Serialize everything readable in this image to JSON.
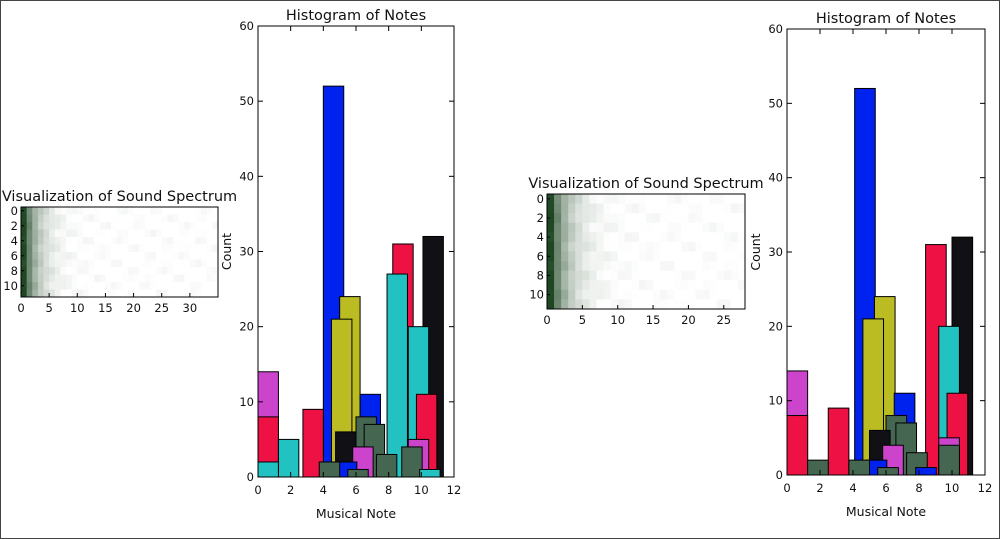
{
  "chart_data": [
    {
      "type": "heatmap",
      "title": "Visualization of Sound Spectrum",
      "xlim": [
        0,
        35
      ],
      "ylim": [
        0,
        12
      ],
      "xticks": [
        "0",
        "5",
        "10",
        "15",
        "20",
        "25",
        "30"
      ],
      "yticks": [
        "0",
        "2",
        "4",
        "6",
        "8",
        "10"
      ],
      "rows": 12,
      "cols": 35,
      "colormap": "greys-green"
    },
    {
      "type": "bar",
      "title": "Histogram of Notes",
      "xlabel": "Musical Note",
      "ylabel": "Count",
      "xlim": [
        0,
        12
      ],
      "ylim": [
        0,
        60
      ],
      "xticks": [
        "0",
        "2",
        "4",
        "6",
        "8",
        "10",
        "12"
      ],
      "yticks": [
        "0",
        "10",
        "20",
        "30",
        "40",
        "50",
        "60"
      ],
      "bar_width": 1.25,
      "series": [
        {
          "color": "#ee1144",
          "values": [
            [
              0,
              8
            ],
            [
              2.75,
              9
            ],
            [
              8.25,
              31
            ],
            [
              9.7,
              11
            ]
          ]
        },
        {
          "color": "#cc44cc",
          "values": [
            [
              0,
              14
            ],
            [
              5.8,
              4
            ],
            [
              9.2,
              5
            ]
          ]
        },
        {
          "color": "#22c2c2",
          "values": [
            [
              0,
              2
            ],
            [
              1.25,
              5
            ],
            [
              7.9,
              27
            ],
            [
              9.2,
              20
            ],
            [
              9.9,
              1
            ]
          ]
        },
        {
          "color": "#111115",
          "values": [
            [
              4.75,
              6
            ],
            [
              10.1,
              32
            ]
          ]
        },
        {
          "color": "#0022ee",
          "values": [
            [
              4.0,
              52
            ],
            [
              4.8,
              2
            ],
            [
              6.25,
              11
            ]
          ]
        },
        {
          "color": "#bbbb22",
          "values": [
            [
              4.5,
              21
            ],
            [
              5.0,
              24
            ]
          ]
        },
        {
          "color": "#456650",
          "values": [
            [
              3.75,
              2
            ],
            [
              5.5,
              1
            ],
            [
              6.0,
              8
            ],
            [
              6.5,
              7
            ],
            [
              7.25,
              3
            ],
            [
              8.8,
              4
            ]
          ]
        }
      ]
    },
    {
      "type": "heatmap",
      "title": "Visualization of Sound Spectrum",
      "xlim": [
        0,
        28
      ],
      "ylim": [
        0,
        12
      ],
      "xticks": [
        "0",
        "5",
        "10",
        "15",
        "20",
        "25"
      ],
      "yticks": [
        "0",
        "2",
        "4",
        "6",
        "8",
        "10"
      ],
      "rows": 12,
      "cols": 28,
      "colormap": "greys-green"
    },
    {
      "type": "bar",
      "title": "Histogram of Notes",
      "xlabel": "Musical Note",
      "ylabel": "Count",
      "xlim": [
        0,
        12
      ],
      "ylim": [
        0,
        60
      ],
      "xticks": [
        "0",
        "2",
        "4",
        "6",
        "8",
        "10",
        "12"
      ],
      "yticks": [
        "0",
        "10",
        "20",
        "30",
        "40",
        "50",
        "60"
      ],
      "bar_width": 1.25,
      "series": [
        {
          "color": "#ee1144",
          "values": [
            [
              0,
              8
            ],
            [
              2.5,
              9
            ],
            [
              8.4,
              31
            ],
            [
              9.7,
              11
            ]
          ]
        },
        {
          "color": "#cc44cc",
          "values": [
            [
              0,
              14
            ],
            [
              5.8,
              4
            ],
            [
              9.2,
              5
            ]
          ]
        },
        {
          "color": "#22c2c2",
          "values": [
            [
              9.2,
              20
            ]
          ]
        },
        {
          "color": "#111115",
          "values": [
            [
              5.0,
              6
            ],
            [
              10.0,
              32
            ]
          ]
        },
        {
          "color": "#0022ee",
          "values": [
            [
              4.1,
              52
            ],
            [
              4.8,
              2
            ],
            [
              6.5,
              11
            ],
            [
              7.8,
              1
            ]
          ]
        },
        {
          "color": "#bbbb22",
          "values": [
            [
              4.6,
              21
            ],
            [
              5.3,
              24
            ]
          ]
        },
        {
          "color": "#456650",
          "values": [
            [
              1.25,
              2
            ],
            [
              3.75,
              2
            ],
            [
              5.5,
              1
            ],
            [
              6.0,
              8
            ],
            [
              6.6,
              7
            ],
            [
              7.25,
              3
            ],
            [
              9.2,
              4
            ]
          ]
        }
      ]
    }
  ]
}
